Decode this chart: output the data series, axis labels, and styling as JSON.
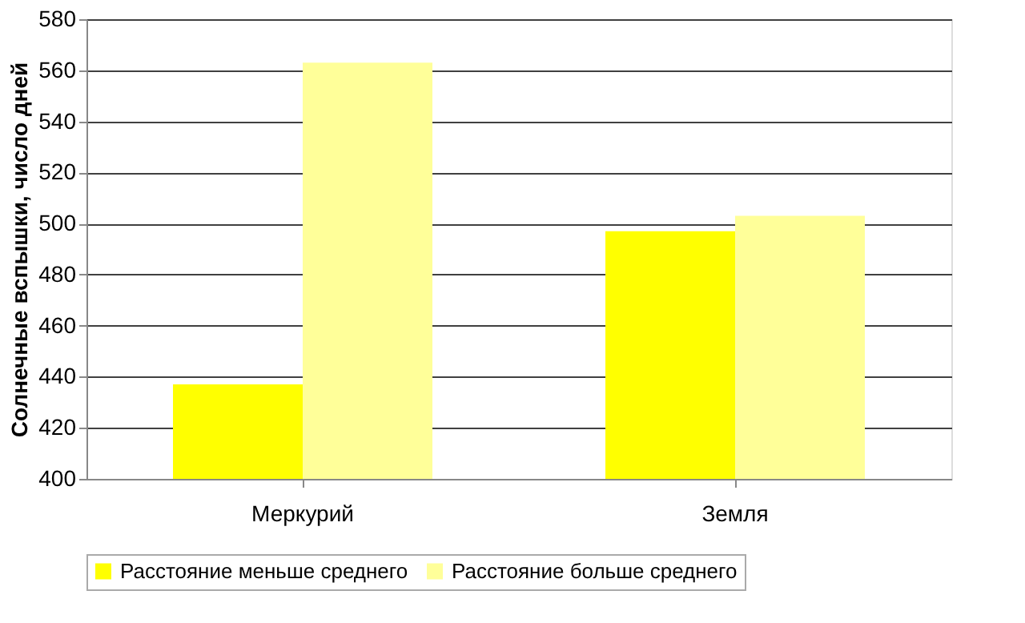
{
  "chart_data": {
    "type": "bar",
    "ylabel": "Солнечные вспышки, число дней",
    "categories": [
      "Меркурий",
      "Земля"
    ],
    "series": [
      {
        "name": "Расстояние меньше среднего",
        "color": "#ffff00",
        "values": [
          437,
          497
        ]
      },
      {
        "name": "Расстояние больше среднего",
        "color": "#ffff99",
        "values": [
          563,
          503
        ]
      }
    ],
    "ylim": [
      400,
      580
    ],
    "yticks": [
      400,
      420,
      440,
      460,
      480,
      500,
      520,
      540,
      560,
      580
    ],
    "grid": "y",
    "legend": "bottom"
  }
}
